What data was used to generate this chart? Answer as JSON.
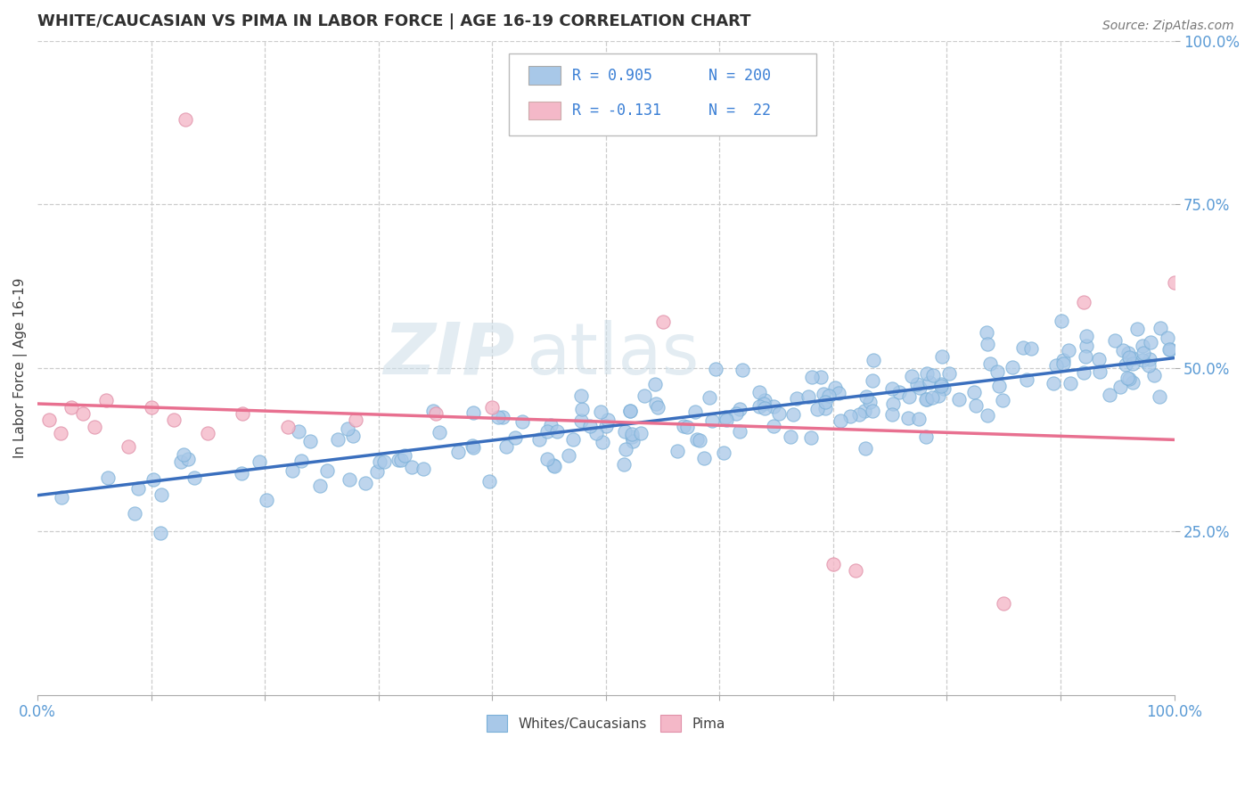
{
  "title": "WHITE/CAUCASIAN VS PIMA IN LABOR FORCE | AGE 16-19 CORRELATION CHART",
  "source": "Source: ZipAtlas.com",
  "ylabel": "In Labor Force | Age 16-19",
  "xlim": [
    0,
    1
  ],
  "ylim": [
    0,
    1
  ],
  "blue_R": 0.905,
  "blue_N": 200,
  "pink_R": -0.131,
  "pink_N": 22,
  "blue_color": "#a8c8e8",
  "pink_color": "#f4b8c8",
  "blue_line_color": "#3a6fbe",
  "pink_line_color": "#e87090",
  "blue_trend_x": [
    0,
    1
  ],
  "blue_trend_y": [
    0.305,
    0.515
  ],
  "pink_trend_x": [
    0,
    1
  ],
  "pink_trend_y": [
    0.445,
    0.39
  ],
  "watermark_zip": "ZIP",
  "watermark_atlas": "atlas",
  "right_yticks": [
    0.25,
    0.5,
    0.75,
    1.0
  ],
  "right_ytick_labels": [
    "25.0%",
    "50.0%",
    "75.0%",
    "100.0%"
  ],
  "legend_blue_text": "R = 0.905   N = 200",
  "legend_pink_text": "R = -0.131   N =  22",
  "blue_scatter_seed": 42,
  "pink_scatter_seed": 7
}
